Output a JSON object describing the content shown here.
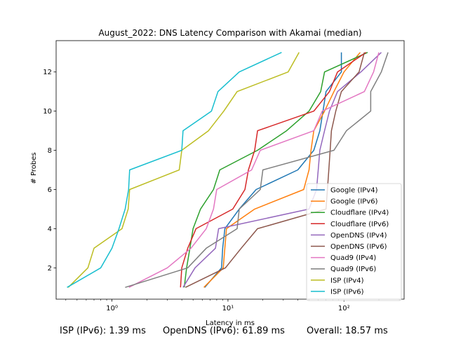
{
  "chart_data": {
    "type": "line",
    "title": "August_2022: DNS Latency Comparison with Akamai (median)",
    "xlabel": "Latency in ms",
    "ylabel": "# Probes",
    "xscale": "log",
    "xlim": [
      0.33,
      330
    ],
    "ylim": [
      0.4,
      13.6
    ],
    "x_ticks": [
      {
        "value": 1,
        "label": "10⁰"
      },
      {
        "value": 10,
        "label": "10¹"
      },
      {
        "value": 100,
        "label": "10²"
      }
    ],
    "y_ticks": [
      2,
      4,
      6,
      8,
      10,
      12
    ],
    "grid": false,
    "legend": "lower-right",
    "series": [
      {
        "name": "Google (IPv4)",
        "color": "#1f77b4",
        "points": [
          [
            6.3,
            1
          ],
          [
            8.8,
            2
          ],
          [
            9.0,
            3
          ],
          [
            9.4,
            4
          ],
          [
            12.5,
            5
          ],
          [
            17.5,
            6
          ],
          [
            40,
            7
          ],
          [
            55,
            8
          ],
          [
            62,
            9
          ],
          [
            66,
            10
          ],
          [
            70,
            11
          ],
          [
            95,
            12
          ],
          [
            95,
            13
          ]
        ]
      },
      {
        "name": "Google (IPv6)",
        "color": "#ff7f0e",
        "points": [
          [
            6.2,
            1
          ],
          [
            9.1,
            2
          ],
          [
            9.4,
            3
          ],
          [
            9.7,
            4
          ],
          [
            17,
            5
          ],
          [
            45,
            6
          ],
          [
            50,
            7
          ],
          [
            52,
            8
          ],
          [
            55,
            9
          ],
          [
            68,
            10
          ],
          [
            82,
            11
          ],
          [
            100,
            12
          ],
          [
            138,
            13
          ]
        ]
      },
      {
        "name": "Cloudflare (IPv4)",
        "color": "#2ca02c",
        "points": [
          [
            4.2,
            1
          ],
          [
            4.4,
            2
          ],
          [
            4.7,
            3
          ],
          [
            5.0,
            4
          ],
          [
            5.8,
            5
          ],
          [
            7.5,
            6
          ],
          [
            8.5,
            7
          ],
          [
            18,
            8
          ],
          [
            32,
            9
          ],
          [
            50,
            10
          ],
          [
            63,
            11
          ],
          [
            68,
            12
          ],
          [
            160,
            13
          ]
        ]
      },
      {
        "name": "Cloudflare (IPv6)",
        "color": "#d62728",
        "points": [
          [
            3.9,
            1
          ],
          [
            4.0,
            2
          ],
          [
            4.5,
            3
          ],
          [
            5.3,
            4
          ],
          [
            11,
            5
          ],
          [
            14,
            6
          ],
          [
            15,
            7
          ],
          [
            17,
            8
          ],
          [
            18,
            9
          ],
          [
            55,
            10
          ],
          [
            75,
            11
          ],
          [
            88,
            12
          ],
          [
            155,
            13
          ]
        ]
      },
      {
        "name": "OpenDNS (IPv4)",
        "color": "#9467bd",
        "points": [
          [
            4.1,
            1
          ],
          [
            5.2,
            2
          ],
          [
            7.8,
            3
          ],
          [
            8.3,
            4
          ],
          [
            50,
            5
          ],
          [
            58,
            6
          ],
          [
            60,
            7
          ],
          [
            62,
            8
          ],
          [
            68,
            9
          ],
          [
            75,
            10
          ],
          [
            88,
            11
          ],
          [
            140,
            12
          ],
          [
            210,
            13
          ]
        ]
      },
      {
        "name": "OpenDNS (IPv6)",
        "color": "#8c564b",
        "points": [
          [
            4.3,
            1
          ],
          [
            9.5,
            2
          ],
          [
            13,
            3
          ],
          [
            18,
            4
          ],
          [
            70,
            5
          ],
          [
            72,
            6
          ],
          [
            74,
            7
          ],
          [
            76,
            8
          ],
          [
            78,
            9
          ],
          [
            85,
            10
          ],
          [
            95,
            11
          ],
          [
            135,
            12
          ],
          [
            150,
            13
          ]
        ]
      },
      {
        "name": "Quad9 (IPv4)",
        "color": "#e377c2",
        "points": [
          [
            1.4,
            1
          ],
          [
            3.0,
            2
          ],
          [
            4.8,
            3
          ],
          [
            6.5,
            4
          ],
          [
            7.5,
            5
          ],
          [
            8.0,
            6
          ],
          [
            16,
            7
          ],
          [
            19,
            8
          ],
          [
            55,
            9
          ],
          [
            65,
            10
          ],
          [
            150,
            11
          ],
          [
            180,
            12
          ],
          [
            200,
            13
          ]
        ]
      },
      {
        "name": "Quad9 (IPv6)",
        "color": "#7f7f7f",
        "points": [
          [
            1.3,
            1
          ],
          [
            4.5,
            2
          ],
          [
            6.5,
            3
          ],
          [
            12,
            4
          ],
          [
            12.5,
            5
          ],
          [
            19,
            6
          ],
          [
            20,
            7
          ],
          [
            82,
            8
          ],
          [
            105,
            9
          ],
          [
            170,
            10
          ],
          [
            170,
            11
          ],
          [
            210,
            12
          ],
          [
            240,
            13
          ]
        ]
      },
      {
        "name": "ISP (IPv4)",
        "color": "#bcbd22",
        "points": [
          [
            0.42,
            1
          ],
          [
            0.62,
            2
          ],
          [
            0.7,
            3
          ],
          [
            1.22,
            4
          ],
          [
            1.38,
            5
          ],
          [
            1.42,
            6
          ],
          [
            3.8,
            7
          ],
          [
            4.0,
            8
          ],
          [
            6.8,
            9
          ],
          [
            9.2,
            10
          ],
          [
            12,
            11
          ],
          [
            33,
            12
          ],
          [
            41,
            13
          ]
        ]
      },
      {
        "name": "ISP (IPv6)",
        "color": "#17becf",
        "points": [
          [
            0.41,
            1
          ],
          [
            0.8,
            2
          ],
          [
            1.0,
            3
          ],
          [
            1.15,
            4
          ],
          [
            1.3,
            5
          ],
          [
            1.39,
            6
          ],
          [
            1.42,
            7
          ],
          [
            4.0,
            8
          ],
          [
            4.1,
            9
          ],
          [
            7.2,
            10
          ],
          [
            8.2,
            11
          ],
          [
            12.5,
            12
          ],
          [
            29,
            13
          ]
        ]
      }
    ]
  },
  "footer": {
    "isp": "ISP (IPv6): 1.39 ms",
    "opendns": "OpenDNS (IPv6): 61.89 ms",
    "overall": "Overall: 18.57 ms"
  }
}
